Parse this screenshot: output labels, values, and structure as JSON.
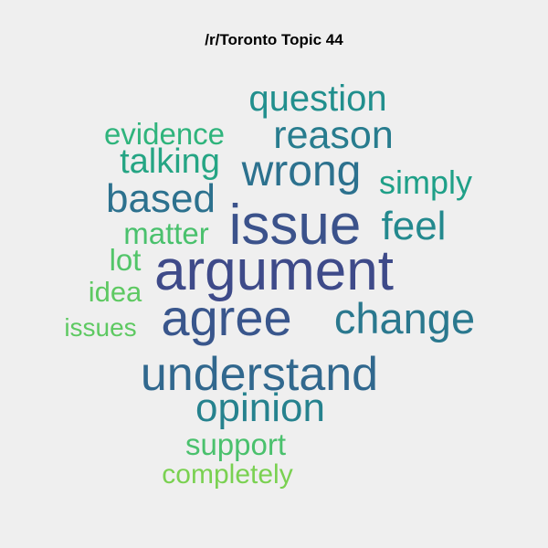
{
  "title": "/r/Toronto Topic 44",
  "words": [
    {
      "text": "question",
      "weight": 0.62,
      "color": "#218f8d"
    },
    {
      "text": "evidence",
      "weight": 0.5,
      "color": "#2fb47c"
    },
    {
      "text": "reason",
      "weight": 0.66,
      "color": "#287c8e"
    },
    {
      "text": "talking",
      "weight": 0.56,
      "color": "#25a584"
    },
    {
      "text": "wrong",
      "weight": 0.76,
      "color": "#2c718e"
    },
    {
      "text": "simply",
      "weight": 0.5,
      "color": "#1fa088"
    },
    {
      "text": "based",
      "weight": 0.7,
      "color": "#2c718e"
    },
    {
      "text": "issue",
      "weight": 0.95,
      "color": "#3b528b"
    },
    {
      "text": "feel",
      "weight": 0.66,
      "color": "#23898e"
    },
    {
      "text": "matter",
      "weight": 0.48,
      "color": "#4ac16d"
    },
    {
      "text": "lot",
      "weight": 0.46,
      "color": "#52c569"
    },
    {
      "text": "argument",
      "weight": 1.0,
      "color": "#3e4a89"
    },
    {
      "text": "idea",
      "weight": 0.44,
      "color": "#5ec962"
    },
    {
      "text": "agree",
      "weight": 0.88,
      "color": "#39568c"
    },
    {
      "text": "change",
      "weight": 0.74,
      "color": "#2a788e"
    },
    {
      "text": "issues",
      "weight": 0.42,
      "color": "#5ec962"
    },
    {
      "text": "understand",
      "weight": 0.8,
      "color": "#31688e"
    },
    {
      "text": "opinion",
      "weight": 0.68,
      "color": "#26828e"
    },
    {
      "text": "support",
      "weight": 0.48,
      "color": "#4ac16d"
    },
    {
      "text": "completely",
      "weight": 0.46,
      "color": "#7ad151"
    }
  ]
}
